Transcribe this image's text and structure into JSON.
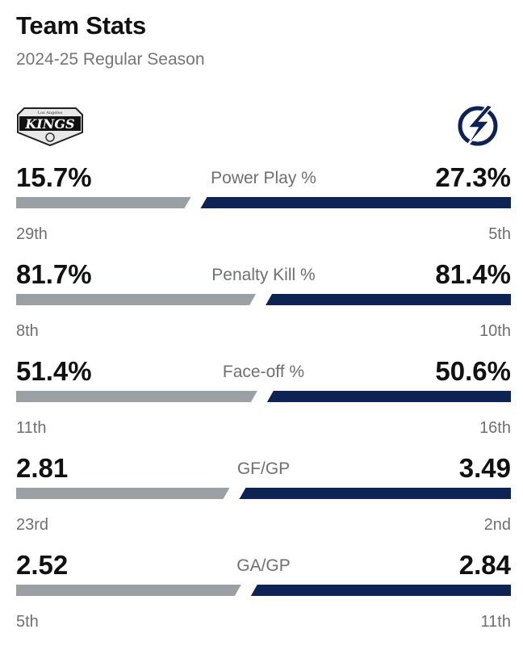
{
  "header": {
    "title": "Team Stats",
    "subtitle": "2024-25 Regular Season"
  },
  "teams": {
    "left": {
      "logo_icon": "la-kings-logo",
      "color": "#9aa0a3"
    },
    "right": {
      "logo_icon": "tampa-bay-lightning-logo",
      "color": "#0e2254"
    }
  },
  "stats": [
    {
      "label": "Power Play %",
      "left_value": "15.7%",
      "right_value": "27.3%",
      "left_rank": "29th",
      "right_rank": "5th",
      "left_num": 15.7,
      "right_num": 27.3
    },
    {
      "label": "Penalty Kill %",
      "left_value": "81.7%",
      "right_value": "81.4%",
      "left_rank": "8th",
      "right_rank": "10th",
      "left_num": 81.7,
      "right_num": 81.4
    },
    {
      "label": "Face-off %",
      "left_value": "51.4%",
      "right_value": "50.6%",
      "left_rank": "11th",
      "right_rank": "16th",
      "left_num": 51.4,
      "right_num": 50.6
    },
    {
      "label": "GF/GP",
      "left_value": "2.81",
      "right_value": "3.49",
      "left_rank": "23rd",
      "right_rank": "2nd",
      "left_num": 2.81,
      "right_num": 3.49
    },
    {
      "label": "GA/GP",
      "left_value": "2.52",
      "right_value": "2.84",
      "left_rank": "5th",
      "right_rank": "11th",
      "left_num": 2.52,
      "right_num": 2.84
    }
  ]
}
